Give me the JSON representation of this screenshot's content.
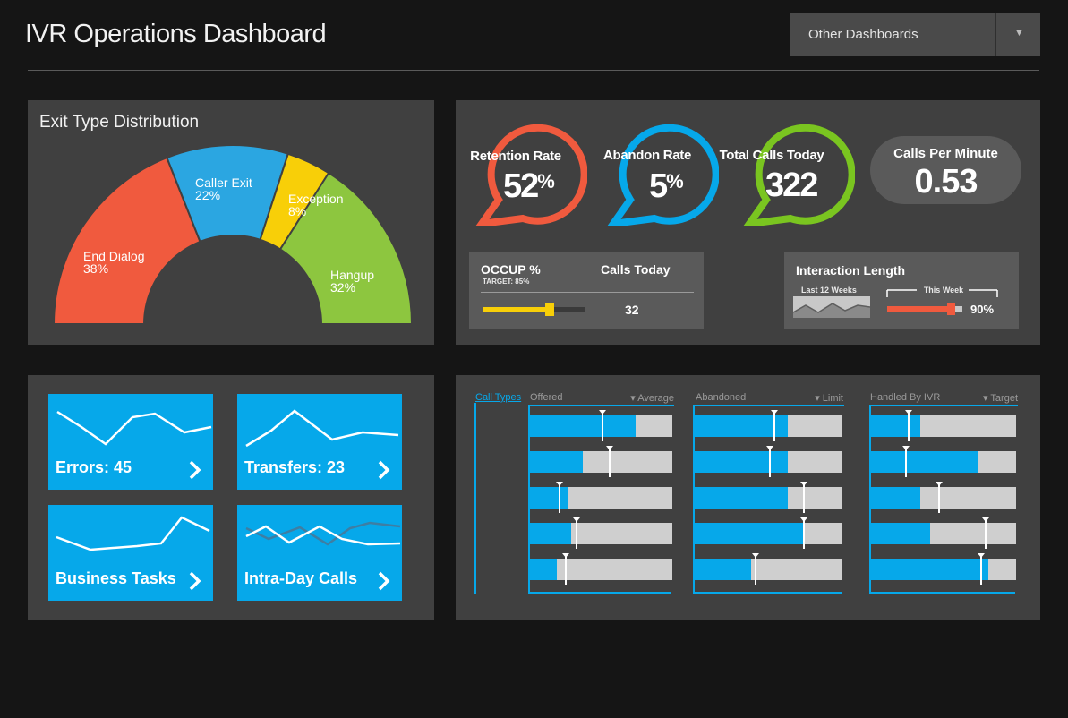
{
  "header": {
    "title": "IVR Operations Dashboard",
    "dashboards_select": {
      "value": "Other Dashboards",
      "arrow_icon": "triangle-down-icon"
    }
  },
  "exit_type": {
    "title": "Exit Type Distribution",
    "segments": [
      {
        "name": "End Dialog",
        "percent": "38%",
        "value": 38,
        "color": "#f05a3e"
      },
      {
        "name": "Caller Exit",
        "percent": "22%",
        "value": 22,
        "color": "#2ba6e1"
      },
      {
        "name": "Exception",
        "percent": "8%",
        "value": 8,
        "color": "#f8cf08"
      },
      {
        "name": "Hangup",
        "percent": "32%",
        "value": 32,
        "color": "#8dc63f"
      }
    ]
  },
  "kpis": {
    "retention": {
      "label": "Retention Rate",
      "value": "52",
      "unit": "%",
      "color": "#f05a3e"
    },
    "abandon": {
      "label": "Abandon Rate",
      "value": "5",
      "unit": "%",
      "color": "#06a8ea"
    },
    "total_calls": {
      "label": "Total Calls Today",
      "value": "322",
      "color": "#7ac520"
    },
    "cpm": {
      "label": "Calls Per Minute",
      "value": "0.53"
    }
  },
  "occupancy": {
    "title": "OCCUP %",
    "target_label": "TARGET: 85%",
    "level": 0.66,
    "calls_today_label": "Calls Today",
    "calls_today_value": "32"
  },
  "interaction": {
    "title": "Interaction Length",
    "last_weeks_label": "Last 12 Weeks",
    "this_week_label": "This Week",
    "this_week_value": "90%",
    "level": 0.9
  },
  "tiles": [
    {
      "label": "Errors: 45",
      "icon": "chevron-right-icon"
    },
    {
      "label": "Transfers: 23",
      "icon": "chevron-right-icon"
    },
    {
      "label": "Business Tasks",
      "icon": "chevron-right-icon"
    },
    {
      "label": "Intra-Day Calls",
      "icon": "chevron-right-icon"
    }
  ],
  "call_types": {
    "header": "Call Types",
    "groups": [
      {
        "title": "Offered",
        "marker_label": "Average",
        "values": [
          0.74,
          0.37,
          0.27,
          0.29,
          0.19
        ],
        "markers": [
          0.51,
          0.56,
          0.21,
          0.33,
          0.25
        ]
      },
      {
        "title": "Abandoned",
        "marker_label": "Limit",
        "values": [
          0.63,
          0.63,
          0.63,
          0.74,
          0.38
        ],
        "markers": [
          0.54,
          0.51,
          0.74,
          0.74,
          0.41
        ]
      },
      {
        "title": "Handled By IVR",
        "marker_label": "Target",
        "values": [
          0.34,
          0.74,
          0.34,
          0.41,
          0.81
        ],
        "markers": [
          0.26,
          0.24,
          0.47,
          0.79,
          0.76
        ]
      }
    ]
  }
}
